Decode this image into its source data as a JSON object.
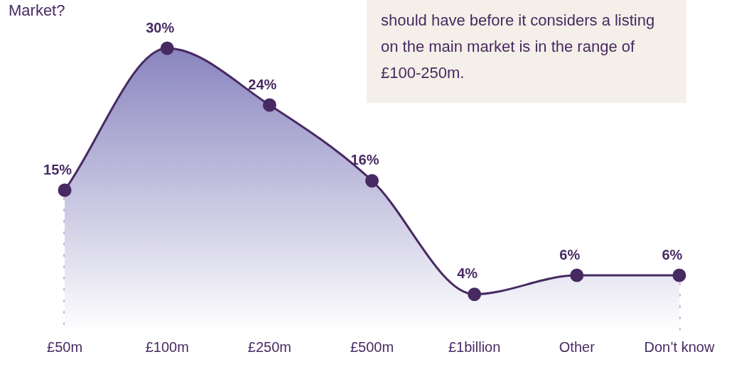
{
  "chart_data": {
    "type": "area",
    "title": "Market?",
    "categories": [
      "£50m",
      "£100m",
      "£250m",
      "£500m",
      "£1billion",
      "Other",
      "Don’t know"
    ],
    "series": [
      {
        "color": "#472a62",
        "values": [
          15,
          30,
          24,
          16,
          4,
          6,
          6
        ],
        "value_labels": [
          "15%",
          "30%",
          "24%",
          "16%",
          "4%",
          "6%",
          "6%"
        ]
      }
    ],
    "grid": false,
    "legend": false,
    "marker": "circle",
    "annotations": [
      "should have before it considers a listing on the main market is in the range of £100-250m."
    ]
  }
}
